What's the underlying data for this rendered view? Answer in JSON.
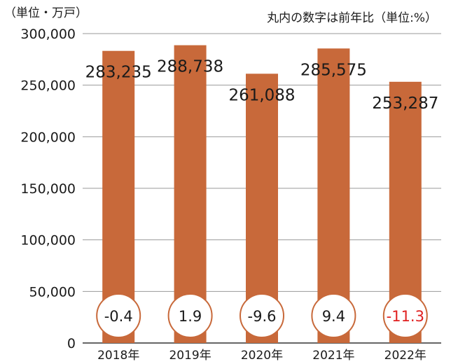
{
  "chart_data": {
    "type": "bar",
    "unit_label": "（単位・万戸）",
    "note": "丸内の数字は前年比（単位:%）",
    "categories": [
      "2018年",
      "2019年",
      "2020年",
      "2021年",
      "2022年"
    ],
    "values": [
      283235,
      288738,
      261088,
      285575,
      253287
    ],
    "value_labels": [
      "283,235",
      "288,738",
      "261,088",
      "285,575",
      "253,287"
    ],
    "yoy_labels": [
      "-0.4",
      "1.9",
      "-9.6",
      "9.4",
      "-11.3"
    ],
    "yoy_values": [
      -0.4,
      1.9,
      -9.6,
      9.4,
      -11.3
    ],
    "yoy_highlight": [
      false,
      false,
      false,
      false,
      true
    ],
    "ylim": [
      0,
      300000
    ],
    "yticks": [
      0,
      50000,
      100000,
      150000,
      200000,
      250000,
      300000
    ],
    "ytick_labels": [
      "0",
      "50,000",
      "100,000",
      "150,000",
      "200,000",
      "250,000",
      "300,000"
    ],
    "grid": true,
    "colors": {
      "bar": "#C8693A",
      "circle_border": "#C8693A",
      "circle_fill": "#ffffff",
      "highlight_text": "#E02020",
      "text": "#1a1a1a",
      "grid": "#9a9a9a",
      "axis": "#333333"
    }
  }
}
